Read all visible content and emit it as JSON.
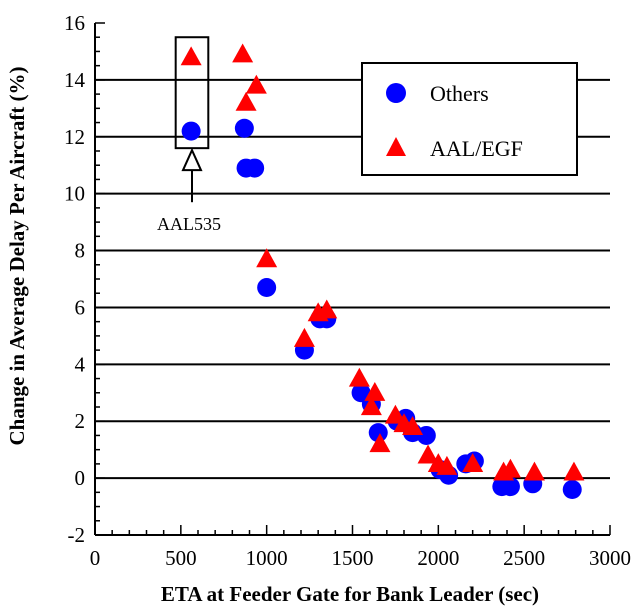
{
  "chart_data": {
    "type": "scatter",
    "title": "",
    "xlabel": "ETA at Feeder Gate for Bank Leader (sec)",
    "ylabel": "Change in Average Delay Per Aircraft (%)",
    "xlim": [
      0,
      3000
    ],
    "ylim": [
      -2,
      16
    ],
    "x_ticks": [
      "0",
      "500",
      "1000",
      "1500",
      "2000",
      "2500",
      "3000"
    ],
    "y_ticks": [
      "-2",
      "0",
      "2",
      "4",
      "6",
      "8",
      "10",
      "12",
      "14",
      "16"
    ],
    "grid": "horizontal",
    "legend_position": "top-right",
    "colors": {
      "others": "#0000ff",
      "aal_egf": "#ff0000"
    },
    "series": [
      {
        "name": "Others",
        "marker": "circle",
        "points": [
          [
            560,
            12.2
          ],
          [
            870,
            12.3
          ],
          [
            880,
            10.9
          ],
          [
            930,
            10.9
          ],
          [
            1000,
            6.7
          ],
          [
            1220,
            4.5
          ],
          [
            1310,
            5.6
          ],
          [
            1350,
            5.6
          ],
          [
            1550,
            3.0
          ],
          [
            1610,
            2.6
          ],
          [
            1650,
            1.6
          ],
          [
            1760,
            2.0
          ],
          [
            1810,
            2.1
          ],
          [
            1850,
            1.6
          ],
          [
            1930,
            1.5
          ],
          [
            2010,
            0.3
          ],
          [
            2060,
            0.1
          ],
          [
            2160,
            0.5
          ],
          [
            2210,
            0.6
          ],
          [
            2370,
            -0.3
          ],
          [
            2420,
            -0.3
          ],
          [
            2550,
            -0.2
          ],
          [
            2780,
            -0.4
          ]
        ]
      },
      {
        "name": "AAL/EGF",
        "marker": "triangle",
        "points": [
          [
            560,
            14.8
          ],
          [
            860,
            14.9
          ],
          [
            880,
            13.2
          ],
          [
            940,
            13.8
          ],
          [
            1000,
            7.7
          ],
          [
            1220,
            4.9
          ],
          [
            1300,
            5.8
          ],
          [
            1350,
            5.9
          ],
          [
            1540,
            3.5
          ],
          [
            1610,
            2.5
          ],
          [
            1630,
            3.0
          ],
          [
            1660,
            1.2
          ],
          [
            1750,
            2.2
          ],
          [
            1800,
            1.9
          ],
          [
            1850,
            1.8
          ],
          [
            1940,
            0.8
          ],
          [
            2000,
            0.5
          ],
          [
            2050,
            0.4
          ],
          [
            2200,
            0.5
          ],
          [
            2380,
            0.2
          ],
          [
            2420,
            0.3
          ],
          [
            2560,
            0.2
          ],
          [
            2790,
            0.2
          ]
        ]
      }
    ],
    "annotation": {
      "label": "AAL535",
      "box_x": [
        470,
        660
      ],
      "box_y": [
        11.6,
        15.5
      ],
      "arrow_x": 565,
      "arrow_from_y": 9.7,
      "arrow_to_y": 11.6
    }
  }
}
